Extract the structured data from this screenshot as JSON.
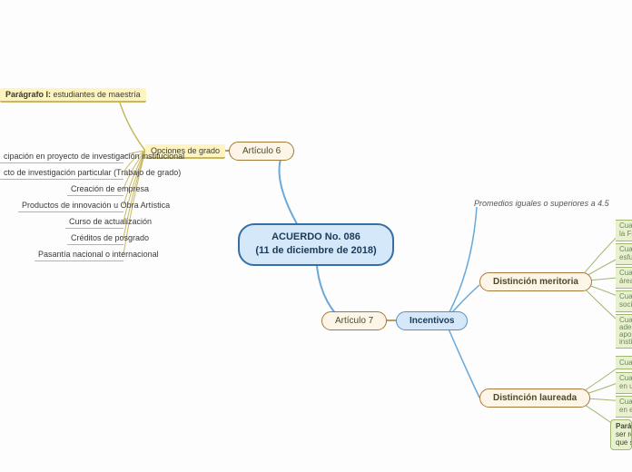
{
  "root": {
    "title_line1": "ACUERDO No. 086",
    "title_line2": "(11 de diciembre de 2018)",
    "bg": "#d4e8f9",
    "border": "#356fa3"
  },
  "art6": {
    "label": "Artículo 6",
    "opciones": "Opciones de grado",
    "paragrafo": "Parágrafo I: estudiantes de maestría",
    "items": [
      "cipación en proyecto de investigación institucional",
      "cto de investigación particular (Trabajo de grado)",
      "Creación de empresa",
      "Productos de innovación u Obra Artística",
      "Curso de actualización",
      "Créditos de posgrado",
      "Pasantía nacional o internacional"
    ]
  },
  "art7": {
    "label": "Artículo 7",
    "incentivos": "Incentivos",
    "promedios": "Promedios iguales o superiores a 4.5",
    "meritoria": "Distinción meritoria",
    "laureada": "Distinción laureada",
    "meritoria_items": [
      "Cuando",
      "la Funda",
      "Cuando",
      "esfuerz",
      "Cuando",
      "área de",
      "Cuando",
      "social in",
      "Cuando",
      "además",
      "aporte",
      "institu"
    ],
    "laureada_items": [
      "Cuando",
      "Cuand",
      "en un",
      "Cuand",
      "en el",
      "Parágra",
      "ser reco",
      "que seri"
    ]
  },
  "colors": {
    "line_blue": "#6aa8d8",
    "line_yellow": "#c8b860",
    "line_brown": "#a87838",
    "line_green": "#a0b870"
  }
}
